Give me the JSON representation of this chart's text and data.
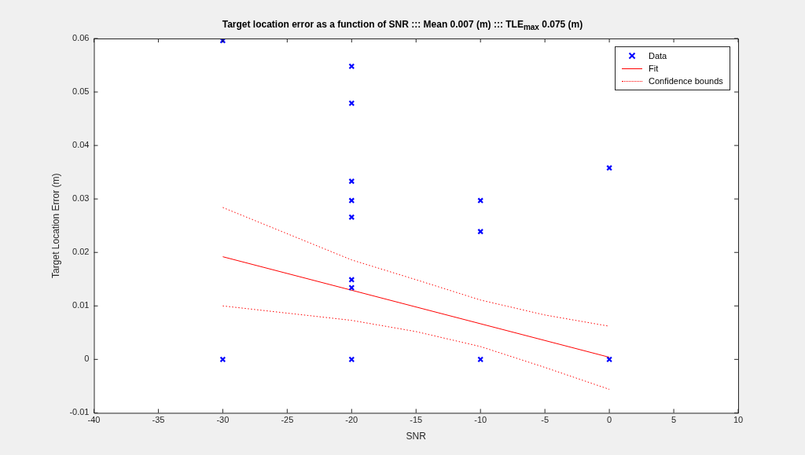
{
  "chart_data": {
    "type": "scatter",
    "title": "Target location error as a function of SNR ::: Mean 0.007 (m) ::: TLE$_{max}$ 0.075 (m)",
    "xlabel": "SNR",
    "ylabel": "Target Location Error (m)",
    "xlim": [
      -40,
      10
    ],
    "xticks": [
      -40,
      -35,
      -30,
      -25,
      -20,
      -15,
      -10,
      -5,
      0,
      5,
      10
    ],
    "ylim": [
      -0.01,
      0.06
    ],
    "yticks": [
      -0.01,
      0,
      0.01,
      0.02,
      0.03,
      0.04,
      0.05,
      0.06
    ],
    "grid": false,
    "legend": "top right",
    "series": [
      {
        "name": "Data",
        "type": "scatter",
        "marker": "cross",
        "color": "#0000ff",
        "x": [
          -30,
          -30,
          -20,
          -20,
          -20,
          -20,
          -20,
          -20,
          -20,
          -20,
          -10,
          -10,
          -10,
          0,
          0
        ],
        "values": [
          0.0596,
          0,
          0.0548,
          0.0479,
          0.0333,
          0.0297,
          0.0266,
          0.0149,
          0.0134,
          0,
          0.0297,
          0.0239,
          0,
          0.0358,
          0
        ]
      },
      {
        "name": "Fit",
        "type": "line",
        "marker": "none",
        "line_style": "solid",
        "color": "#ff0000",
        "x": [
          -30,
          0
        ],
        "values": [
          0.0192,
          0.0004
        ]
      },
      {
        "name": "Confidence bounds",
        "type": "line",
        "marker": "none",
        "line_style": "dotted",
        "color": "#ff0000",
        "x": [
          -30,
          -20,
          -15,
          -10,
          -5,
          0
        ],
        "values": [
          0.0284,
          0.0186,
          0.0149,
          0.0111,
          0.0083,
          0.0062
        ]
      },
      {
        "type": "line",
        "marker": "none",
        "line_style": "dotted",
        "color": "#ff0000",
        "x": [
          -30,
          -20,
          -15,
          -10,
          -5,
          0
        ],
        "values": [
          0.01,
          0.0073,
          0.0052,
          0.0024,
          -0.0015,
          -0.0056
        ]
      }
    ]
  }
}
